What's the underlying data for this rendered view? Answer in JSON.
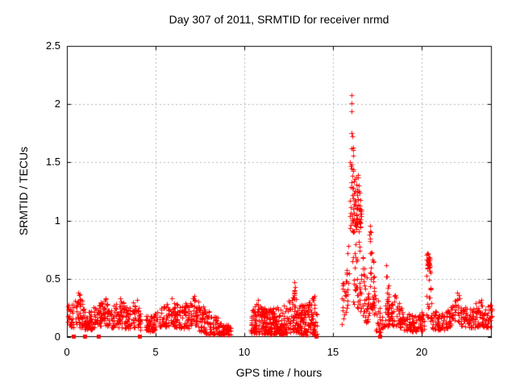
{
  "chart_data": {
    "type": "scatter",
    "title": "Day 307 of 2011, SRMTID for receiver nrmd",
    "xlabel": "GPS time / hours",
    "ylabel": "SRMTID / TECUs",
    "xlim": [
      0,
      23.95
    ],
    "ylim": [
      0,
      2.5
    ],
    "xticks": [
      0,
      5,
      10,
      15,
      20
    ],
    "yticks": [
      0,
      0.5,
      1,
      1.5,
      2,
      2.5
    ],
    "xtick_labels": [
      "0",
      "5",
      "10",
      "15",
      "20"
    ],
    "ytick_labels": [
      "0",
      "0.5",
      "1",
      "1.5",
      "2",
      "2.5"
    ],
    "grid": true,
    "grid_color": "#b4b4b4",
    "border_color": "#000000",
    "background_color": "#ffffff",
    "marker": "plus",
    "marker_color": "#ff0000",
    "marker_size": 7,
    "legend": "none",
    "seed": 307,
    "bands": [
      {
        "n": 340,
        "env": [
          [
            0.05,
            0.1,
            0.3
          ],
          [
            0.3,
            0.08,
            0.28
          ],
          [
            0.55,
            0.08,
            0.38
          ],
          [
            0.8,
            0.08,
            0.36
          ],
          [
            1.0,
            0.07,
            0.22
          ],
          [
            1.3,
            0.06,
            0.22
          ],
          [
            1.6,
            0.08,
            0.28
          ],
          [
            1.9,
            0.1,
            0.3
          ],
          [
            2.2,
            0.1,
            0.33
          ],
          [
            2.5,
            0.08,
            0.25
          ],
          [
            2.8,
            0.08,
            0.3
          ],
          [
            3.1,
            0.08,
            0.32
          ],
          [
            3.4,
            0.07,
            0.25
          ],
          [
            3.7,
            0.08,
            0.3
          ],
          [
            3.95,
            0.08,
            0.32
          ],
          [
            4.15,
            0.06,
            0.18
          ]
        ]
      },
      {
        "n": 380,
        "env": [
          [
            4.45,
            0.05,
            0.18
          ],
          [
            4.8,
            0.05,
            0.2
          ],
          [
            5.1,
            0.06,
            0.22
          ],
          [
            5.5,
            0.08,
            0.28
          ],
          [
            5.9,
            0.1,
            0.33
          ],
          [
            6.2,
            0.08,
            0.3
          ],
          [
            6.5,
            0.07,
            0.28
          ],
          [
            6.9,
            0.08,
            0.33
          ],
          [
            7.2,
            0.08,
            0.35
          ],
          [
            7.5,
            0.05,
            0.3
          ],
          [
            7.8,
            0.03,
            0.25
          ],
          [
            8.1,
            0.02,
            0.22
          ],
          [
            8.4,
            0.02,
            0.18
          ],
          [
            8.8,
            0.02,
            0.12
          ],
          [
            9.25,
            0.02,
            0.1
          ]
        ]
      },
      {
        "n": 430,
        "env": [
          [
            10.35,
            0.03,
            0.2
          ],
          [
            10.6,
            0.03,
            0.3
          ],
          [
            10.9,
            0.03,
            0.32
          ],
          [
            11.2,
            0.02,
            0.25
          ],
          [
            11.5,
            0.02,
            0.25
          ],
          [
            11.8,
            0.02,
            0.28
          ],
          [
            12.1,
            0.02,
            0.25
          ],
          [
            12.4,
            0.03,
            0.3
          ],
          [
            12.7,
            0.03,
            0.35
          ],
          [
            12.85,
            0.05,
            0.45
          ],
          [
            13.0,
            0.03,
            0.3
          ],
          [
            13.3,
            0.02,
            0.28
          ],
          [
            13.6,
            0.02,
            0.3
          ],
          [
            13.9,
            0.03,
            0.35
          ],
          [
            14.1,
            0.02,
            0.25
          ]
        ]
      },
      {
        "n": 30,
        "env": [
          [
            15.5,
            0.1,
            0.45
          ],
          [
            15.7,
            0.15,
            0.6
          ],
          [
            15.9,
            0.35,
            0.9
          ]
        ]
      },
      {
        "n": 22,
        "env": [
          [
            15.95,
            0.9,
            1.6
          ],
          [
            16.05,
            0.95,
            2.05
          ],
          [
            16.15,
            0.9,
            1.6
          ]
        ]
      },
      {
        "n": 70,
        "env": [
          [
            16.1,
            0.9,
            1.45
          ],
          [
            16.35,
            0.92,
            1.42
          ],
          [
            16.6,
            0.88,
            1.3
          ]
        ]
      },
      {
        "n": 40,
        "env": [
          [
            16.1,
            0.3,
            0.9
          ],
          [
            16.35,
            0.25,
            0.85
          ],
          [
            16.6,
            0.2,
            0.8
          ]
        ]
      },
      {
        "n": 40,
        "env": [
          [
            16.6,
            0.18,
            0.75
          ],
          [
            16.85,
            0.12,
            0.55
          ],
          [
            17.0,
            0.1,
            0.45
          ]
        ]
      },
      {
        "n": 40,
        "env": [
          [
            17.0,
            0.2,
            1.0
          ],
          [
            17.2,
            0.25,
            0.95
          ],
          [
            17.35,
            0.15,
            0.65
          ]
        ]
      },
      {
        "n": 30,
        "env": [
          [
            17.35,
            0.05,
            0.45
          ],
          [
            17.6,
            0.04,
            0.3
          ],
          [
            17.85,
            0.03,
            0.18
          ]
        ]
      },
      {
        "n": 32,
        "env": [
          [
            17.9,
            0.08,
            0.4
          ],
          [
            18.0,
            0.1,
            0.66
          ],
          [
            18.15,
            0.08,
            0.38
          ]
        ]
      },
      {
        "n": 150,
        "env": [
          [
            18.15,
            0.1,
            0.3
          ],
          [
            18.45,
            0.1,
            0.36
          ],
          [
            18.7,
            0.08,
            0.3
          ],
          [
            19.0,
            0.06,
            0.25
          ],
          [
            19.3,
            0.05,
            0.2
          ],
          [
            19.6,
            0.04,
            0.18
          ],
          [
            19.9,
            0.05,
            0.2
          ],
          [
            20.15,
            0.06,
            0.28
          ]
        ]
      },
      {
        "n": 26,
        "env": [
          [
            20.28,
            0.58,
            0.72
          ],
          [
            20.38,
            0.6,
            0.72
          ],
          [
            20.48,
            0.55,
            0.68
          ]
        ]
      },
      {
        "n": 22,
        "env": [
          [
            20.25,
            0.15,
            0.6
          ],
          [
            20.4,
            0.18,
            0.58
          ],
          [
            20.55,
            0.12,
            0.4
          ]
        ]
      },
      {
        "n": 240,
        "env": [
          [
            20.55,
            0.07,
            0.25
          ],
          [
            20.9,
            0.06,
            0.22
          ],
          [
            21.2,
            0.06,
            0.2
          ],
          [
            21.5,
            0.08,
            0.25
          ],
          [
            21.8,
            0.12,
            0.3
          ],
          [
            22.05,
            0.14,
            0.38
          ],
          [
            22.2,
            0.1,
            0.3
          ],
          [
            22.5,
            0.08,
            0.25
          ],
          [
            22.8,
            0.08,
            0.26
          ],
          [
            23.1,
            0.08,
            0.3
          ],
          [
            23.35,
            0.1,
            0.32
          ],
          [
            23.6,
            0.08,
            0.26
          ],
          [
            23.95,
            0.08,
            0.3
          ]
        ]
      }
    ],
    "peak_points": [
      [
        16.03,
        2.08
      ],
      [
        16.06,
        2.01
      ],
      [
        16.04,
        1.94
      ],
      [
        16.05,
        1.75
      ],
      [
        16.03,
        1.62
      ],
      [
        16.06,
        1.45
      ],
      [
        16.04,
        1.33
      ],
      [
        12.82,
        0.47
      ],
      [
        12.85,
        0.43
      ],
      [
        12.8,
        0.4
      ],
      [
        12.83,
        0.36
      ],
      [
        0.65,
        0.38
      ],
      [
        0.7,
        0.36
      ],
      [
        2.2,
        0.33
      ],
      [
        3.0,
        0.33
      ],
      [
        3.95,
        0.32
      ],
      [
        5.9,
        0.33
      ],
      [
        7.2,
        0.35
      ],
      [
        7.1,
        0.33
      ],
      [
        10.75,
        0.32
      ],
      [
        13.95,
        0.35
      ],
      [
        18.5,
        0.36
      ],
      [
        20.35,
        0.71
      ],
      [
        22.0,
        0.38
      ],
      [
        23.35,
        0.32
      ]
    ],
    "zero_points_x": [
      0.37,
      1.0,
      1.77,
      4.1,
      14.05,
      17.64
    ]
  }
}
